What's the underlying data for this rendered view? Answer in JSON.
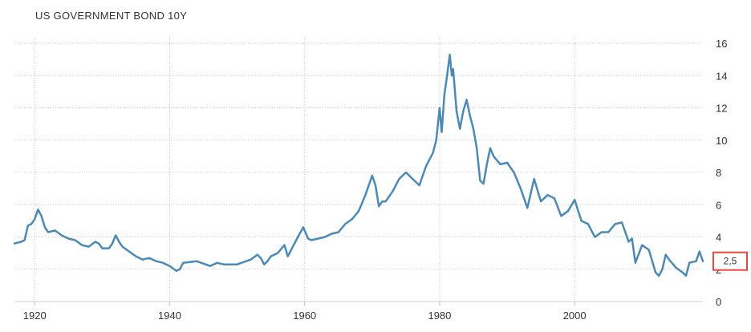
{
  "chart_data": {
    "type": "line",
    "title": "US GOVERNMENT BOND 10Y",
    "xlabel": "",
    "ylabel": "",
    "x_ticks": [
      1920,
      1940,
      1960,
      1980,
      2000
    ],
    "y_ticks": [
      0,
      2,
      4,
      6,
      8,
      10,
      12,
      14,
      16
    ],
    "xlim": [
      1917,
      2019
    ],
    "ylim": [
      0,
      16
    ],
    "grid": true,
    "line_color": "#4a8ab9",
    "last_value_label": "2,5",
    "last_value": 2.5,
    "last_value_box_color": "#e8473c",
    "series": [
      {
        "x": [
          1917.0,
          1918.0,
          1918.5,
          1919.0,
          1919.5,
          1920.0,
          1920.5,
          1921.0,
          1921.5,
          1922.0,
          1923.0,
          1924.0,
          1925.0,
          1926.0,
          1927.0,
          1928.0,
          1929.0,
          1929.5,
          1930.0,
          1931.0,
          1931.5,
          1932.0,
          1932.5,
          1933.0,
          1934.0,
          1935.0,
          1936.0,
          1937.0,
          1938.0,
          1939.0,
          1940.0,
          1941.0,
          1941.5,
          1942.0,
          1944.0,
          1946.0,
          1947.0,
          1948.0,
          1950.0,
          1952.0,
          1953.0,
          1953.5,
          1954.0,
          1954.5,
          1955.0,
          1956.0,
          1957.0,
          1957.5,
          1958.0,
          1959.0,
          1959.8,
          1960.5,
          1961.0,
          1962.0,
          1963.0,
          1964.0,
          1965.0,
          1966.0,
          1967.0,
          1968.0,
          1969.0,
          1970.0,
          1970.5,
          1971.0,
          1971.5,
          1972.0,
          1973.0,
          1974.0,
          1975.0,
          1976.0,
          1977.0,
          1978.0,
          1979.0,
          1979.5,
          1980.0,
          1980.3,
          1980.7,
          1981.0,
          1981.5,
          1981.8,
          1982.0,
          1982.5,
          1983.0,
          1983.5,
          1984.0,
          1984.5,
          1985.0,
          1985.5,
          1986.0,
          1986.5,
          1987.0,
          1987.5,
          1988.0,
          1989.0,
          1990.0,
          1991.0,
          1992.0,
          1993.0,
          1994.0,
          1995.0,
          1996.0,
          1997.0,
          1998.0,
          1999.0,
          2000.0,
          2001.0,
          2002.0,
          2003.0,
          2004.0,
          2005.0,
          2006.0,
          2007.0,
          2008.0,
          2008.5,
          2009.0,
          2010.0,
          2011.0,
          2012.0,
          2012.5,
          2013.0,
          2013.5,
          2014.0,
          2015.0,
          2016.0,
          2016.5,
          2017.0,
          2018.0,
          2018.5,
          2019.0
        ],
        "y": [
          3.6,
          3.7,
          3.8,
          4.7,
          4.8,
          5.1,
          5.7,
          5.3,
          4.6,
          4.3,
          4.4,
          4.1,
          3.9,
          3.8,
          3.5,
          3.4,
          3.7,
          3.6,
          3.3,
          3.3,
          3.6,
          4.1,
          3.7,
          3.4,
          3.1,
          2.8,
          2.6,
          2.7,
          2.5,
          2.4,
          2.2,
          1.9,
          2.0,
          2.4,
          2.5,
          2.2,
          2.4,
          2.3,
          2.3,
          2.6,
          2.9,
          2.7,
          2.3,
          2.5,
          2.8,
          3.0,
          3.5,
          2.8,
          3.2,
          4.0,
          4.6,
          3.9,
          3.8,
          3.9,
          4.0,
          4.2,
          4.3,
          4.8,
          5.1,
          5.6,
          6.6,
          7.8,
          7.2,
          5.9,
          6.2,
          6.2,
          6.8,
          7.6,
          8.0,
          7.6,
          7.2,
          8.4,
          9.2,
          10.0,
          12.0,
          10.5,
          12.8,
          13.7,
          15.3,
          14.0,
          14.4,
          11.8,
          10.7,
          11.8,
          12.5,
          11.5,
          10.7,
          9.5,
          7.5,
          7.3,
          8.5,
          9.5,
          9.0,
          8.5,
          8.6,
          8.0,
          7.0,
          5.8,
          7.6,
          6.2,
          6.6,
          6.4,
          5.3,
          5.6,
          6.3,
          5.0,
          4.8,
          4.0,
          4.3,
          4.3,
          4.8,
          4.9,
          3.7,
          3.9,
          2.4,
          3.5,
          3.2,
          1.8,
          1.6,
          2.0,
          2.9,
          2.6,
          2.1,
          1.8,
          1.6,
          2.4,
          2.5,
          3.1,
          2.5
        ]
      }
    ]
  }
}
